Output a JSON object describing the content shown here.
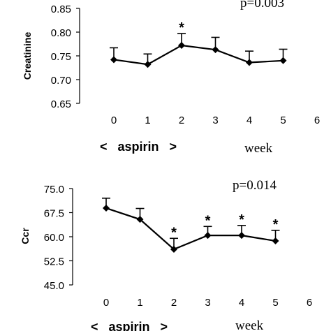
{
  "chart_data": [
    {
      "type": "line",
      "ylabel": "Creatinine",
      "xlabel": "",
      "ylim": [
        0.65,
        0.85
      ],
      "yticks": [
        0.65,
        0.7,
        0.75,
        0.8,
        0.85
      ],
      "ytick_labels": [
        "0.65",
        "0.70",
        "0.75",
        "0.80",
        "0.85"
      ],
      "xlim": [
        -1,
        6
      ],
      "xticks": [
        0,
        1,
        2,
        3,
        4,
        5,
        6
      ],
      "xtick_labels": [
        "0",
        "1",
        "2",
        "3",
        "4",
        "5",
        "6"
      ],
      "x": [
        0,
        1,
        2,
        3,
        4,
        5
      ],
      "y": [
        0.742,
        0.732,
        0.772,
        0.763,
        0.736,
        0.74
      ],
      "error_upper": [
        0.025,
        0.022,
        0.025,
        0.026,
        0.024,
        0.024
      ],
      "significant": [
        false,
        false,
        true,
        false,
        false,
        false
      ],
      "significance_mark": "*",
      "grid": false,
      "annotations": {
        "p_value": "p=0.003",
        "period": "<   aspirin   >",
        "unit": "week"
      },
      "color": "#000000"
    },
    {
      "type": "line",
      "ylabel": "Ccr",
      "xlabel": "",
      "ylim": [
        45.0,
        75.0
      ],
      "yticks": [
        45.0,
        52.5,
        60.0,
        67.5,
        75.0
      ],
      "ytick_labels": [
        "45.0",
        "52.5",
        "60.0",
        "67.5",
        "75.0"
      ],
      "xlim": [
        -1,
        6
      ],
      "xticks": [
        0,
        1,
        2,
        3,
        4,
        5,
        6
      ],
      "xtick_labels": [
        "0",
        "1",
        "2",
        "3",
        "4",
        "5",
        "6"
      ],
      "x": [
        0,
        1,
        2,
        3,
        4,
        5
      ],
      "y": [
        68.9,
        65.4,
        56.1,
        60.4,
        60.4,
        58.7
      ],
      "error_upper": [
        3.1,
        3.4,
        3.4,
        2.8,
        3.1,
        3.3
      ],
      "significant": [
        false,
        false,
        true,
        true,
        true,
        true
      ],
      "significance_mark": "*",
      "grid": false,
      "annotations": {
        "p_value": "p=0.014",
        "period": "<   aspirin   >",
        "unit": "week"
      },
      "color": "#000000"
    }
  ]
}
